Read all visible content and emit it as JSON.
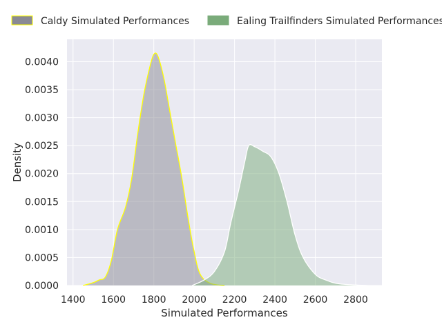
{
  "chart_data": {
    "type": "area",
    "title": "",
    "xlabel": "Simulated Performances",
    "ylabel": "Density",
    "xlim": [
      1370,
      2930
    ],
    "ylim": [
      0,
      0.0044
    ],
    "xticks": [
      1400,
      1600,
      1800,
      2000,
      2200,
      2400,
      2600,
      2800
    ],
    "yticks": [
      0.0,
      0.0005,
      0.001,
      0.0015,
      0.002,
      0.0025,
      0.003,
      0.0035,
      0.004
    ],
    "xtick_labels": [
      "1400",
      "1600",
      "1800",
      "2000",
      "2200",
      "2400",
      "2600",
      "2800"
    ],
    "ytick_labels": [
      "0.0000",
      "0.0005",
      "0.0010",
      "0.0015",
      "0.0020",
      "0.0025",
      "0.0030",
      "0.0035",
      "0.0040"
    ],
    "grid": true,
    "legend_position": "top",
    "series": [
      {
        "name": "Caldy Simulated Performances",
        "fill_color": "#8a8a94",
        "line_color": "#ffff00",
        "points": [
          [
            1450,
            0.0
          ],
          [
            1500,
            5e-05
          ],
          [
            1530,
            0.0001
          ],
          [
            1560,
            0.00015
          ],
          [
            1590,
            0.00045
          ],
          [
            1620,
            0.001
          ],
          [
            1660,
            0.0014
          ],
          [
            1690,
            0.0019
          ],
          [
            1720,
            0.0027
          ],
          [
            1750,
            0.0034
          ],
          [
            1780,
            0.0039
          ],
          [
            1800,
            0.00413
          ],
          [
            1820,
            0.0041
          ],
          [
            1850,
            0.0037
          ],
          [
            1880,
            0.0031
          ],
          [
            1910,
            0.0025
          ],
          [
            1940,
            0.0019
          ],
          [
            1970,
            0.0012
          ],
          [
            2000,
            0.0006
          ],
          [
            2030,
            0.0002
          ],
          [
            2080,
            4e-05
          ],
          [
            2150,
            0.0
          ]
        ]
      },
      {
        "name": "Ealing Trailfinders Simulated Performances",
        "fill_color": "#7aab7a",
        "line_color": "#ffffff",
        "points": [
          [
            1990,
            0.0
          ],
          [
            2050,
            0.0001
          ],
          [
            2100,
            0.00025
          ],
          [
            2150,
            0.0006
          ],
          [
            2180,
            0.0011
          ],
          [
            2220,
            0.0017
          ],
          [
            2250,
            0.0022
          ],
          [
            2270,
            0.0025
          ],
          [
            2300,
            0.00248
          ],
          [
            2340,
            0.0024
          ],
          [
            2380,
            0.0023
          ],
          [
            2420,
            0.002
          ],
          [
            2460,
            0.0015
          ],
          [
            2500,
            0.0009
          ],
          [
            2540,
            0.0005
          ],
          [
            2600,
            0.0002
          ],
          [
            2650,
            0.0001
          ],
          [
            2720,
            3e-05
          ],
          [
            2860,
            0.0
          ]
        ]
      }
    ]
  }
}
